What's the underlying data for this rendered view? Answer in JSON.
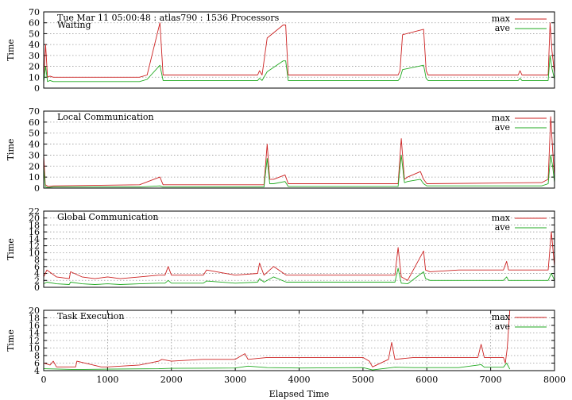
{
  "chart_data": [
    {
      "type": "line",
      "title": "Tue Mar 11 05:00:48 : atlas790 : 1536 Processors",
      "subtitle": "Waiting",
      "xlabel": "",
      "ylabel": "Time",
      "xlim": [
        0,
        8000
      ],
      "ylim": [
        0,
        70
      ],
      "yticks": [
        0,
        10,
        20,
        30,
        40,
        50,
        60,
        70
      ],
      "grid": "on",
      "legend_position": "top-right",
      "series": [
        {
          "name": "max",
          "color": "#cc2222",
          "x": [
            0,
            30,
            60,
            100,
            150,
            1500,
            1620,
            1820,
            1870,
            3350,
            3380,
            3420,
            3500,
            3750,
            3790,
            3830,
            5550,
            5580,
            5620,
            5950,
            5990,
            6020,
            7430,
            7460,
            7490,
            7900,
            7930,
            7960,
            8000
          ],
          "y": [
            9,
            40,
            10,
            11,
            10,
            10,
            12,
            60,
            12,
            12,
            16,
            12,
            46,
            58,
            58,
            12,
            12,
            16,
            49,
            54,
            16,
            12,
            12,
            16,
            12,
            12,
            60,
            34,
            14
          ]
        },
        {
          "name": "ave",
          "color": "#22aa22",
          "x": [
            0,
            30,
            60,
            100,
            150,
            1500,
            1620,
            1820,
            1870,
            3350,
            3380,
            3420,
            3500,
            3750,
            3790,
            3830,
            5550,
            5580,
            5620,
            5950,
            5990,
            6020,
            7430,
            7460,
            7490,
            7900,
            7930,
            7960,
            8000
          ],
          "y": [
            5,
            20,
            6,
            7,
            6,
            6,
            8,
            21,
            7,
            7,
            9,
            7,
            15,
            25,
            25,
            7,
            7,
            9,
            17,
            21,
            9,
            7,
            7,
            9,
            7,
            7,
            30,
            18,
            8
          ]
        }
      ]
    },
    {
      "type": "line",
      "title": "Local Communication",
      "xlabel": "",
      "ylabel": "Time",
      "xlim": [
        0,
        8000
      ],
      "ylim": [
        0,
        70
      ],
      "yticks": [
        0,
        10,
        20,
        30,
        40,
        50,
        60,
        70
      ],
      "grid": "on",
      "legend_position": "top-right",
      "series": [
        {
          "name": "max",
          "color": "#cc2222",
          "x": [
            0,
            25,
            70,
            150,
            1500,
            1820,
            1870,
            3450,
            3500,
            3540,
            3600,
            3780,
            3830,
            5550,
            5600,
            5650,
            5700,
            5900,
            5950,
            6000,
            7800,
            7900,
            7940,
            7970,
            8000
          ],
          "y": [
            30,
            3,
            1.5,
            2,
            3,
            10,
            3,
            3,
            40,
            8,
            8,
            12,
            4,
            4,
            45,
            8,
            10,
            15,
            8,
            4,
            5,
            8,
            65,
            35,
            10
          ]
        },
        {
          "name": "ave",
          "color": "#22aa22",
          "x": [
            0,
            25,
            70,
            150,
            1500,
            1820,
            1870,
            3450,
            3500,
            3540,
            3600,
            3780,
            3830,
            5550,
            5600,
            5650,
            5700,
            5900,
            5950,
            6000,
            7800,
            7900,
            7940,
            7970,
            8000
          ],
          "y": [
            20,
            1,
            0.5,
            1,
            1,
            2,
            1,
            1,
            27,
            4,
            4,
            6,
            1.5,
            1.5,
            30,
            5,
            6,
            8,
            4,
            2,
            2,
            4,
            30,
            20,
            5
          ]
        }
      ]
    },
    {
      "type": "line",
      "title": "Global Communication",
      "xlabel": "",
      "ylabel": "Time",
      "xlim": [
        0,
        8000
      ],
      "ylim": [
        0,
        22
      ],
      "yticks": [
        0,
        2,
        4,
        6,
        8,
        10,
        12,
        14,
        16,
        18,
        20,
        22
      ],
      "grid": "on",
      "legend_position": "top-right",
      "series": [
        {
          "name": "max",
          "color": "#cc2222",
          "x": [
            0,
            50,
            200,
            400,
            420,
            600,
            800,
            1000,
            1200,
            1500,
            1800,
            1900,
            1950,
            2000,
            2500,
            2550,
            3000,
            3350,
            3380,
            3450,
            3600,
            3800,
            5500,
            5550,
            5600,
            5700,
            5950,
            5980,
            6050,
            6500,
            7200,
            7250,
            7280,
            7320,
            7900,
            7950,
            8000
          ],
          "y": [
            3,
            5,
            3,
            2.5,
            4.5,
            3,
            2.5,
            3,
            2.5,
            3,
            3.5,
            3.5,
            6,
            3.5,
            3.5,
            5,
            3.5,
            4,
            7,
            3.5,
            6,
            3.5,
            3.5,
            11.5,
            3,
            2,
            10.5,
            5,
            4.5,
            5,
            5,
            7.5,
            5,
            5,
            5,
            16,
            6
          ]
        },
        {
          "name": "ave",
          "color": "#22aa22",
          "x": [
            0,
            50,
            200,
            400,
            420,
            600,
            800,
            1000,
            1200,
            1500,
            1800,
            1900,
            1950,
            2000,
            2500,
            2550,
            3000,
            3350,
            3380,
            3450,
            3600,
            3800,
            5500,
            5550,
            5600,
            5700,
            5950,
            5980,
            6050,
            6500,
            7200,
            7250,
            7280,
            7320,
            7900,
            7950,
            8000
          ],
          "y": [
            1,
            1.5,
            1,
            0.8,
            1.5,
            1,
            0.8,
            1,
            0.8,
            1,
            1.2,
            1.2,
            2,
            1.2,
            1.2,
            1.8,
            1.2,
            1.5,
            2.5,
            1.5,
            3,
            1.5,
            1.5,
            5.5,
            1.2,
            1,
            4.5,
            2.5,
            2,
            2,
            2,
            3,
            2,
            2,
            2,
            4,
            2
          ]
        }
      ]
    },
    {
      "type": "line",
      "title": "Task Execution",
      "xlabel": "Elapsed Time",
      "ylabel": "Time",
      "xlim": [
        0,
        8000
      ],
      "ylim": [
        4,
        20
      ],
      "yticks": [
        4,
        6,
        8,
        10,
        12,
        14,
        16,
        18,
        20
      ],
      "xticks": [
        0,
        1000,
        2000,
        3000,
        4000,
        5000,
        6000,
        7000,
        8000
      ],
      "grid": "on",
      "legend_position": "top-right",
      "series": [
        {
          "name": "max",
          "color": "#cc2222",
          "x": [
            0,
            100,
            150,
            200,
            500,
            520,
            900,
            1000,
            1500,
            1800,
            1850,
            2000,
            2500,
            3000,
            3150,
            3200,
            3500,
            4000,
            4500,
            5000,
            5100,
            5150,
            5400,
            5450,
            5500,
            5800,
            6000,
            6500,
            6800,
            6850,
            6900,
            7200,
            7230,
            7260,
            7300
          ],
          "y": [
            6,
            5.5,
            6.5,
            5,
            5,
            6.5,
            5,
            5,
            5.5,
            6.5,
            7,
            6.5,
            7,
            7,
            8.5,
            7,
            7.5,
            7.5,
            7.5,
            7.5,
            6.5,
            5,
            7,
            11.5,
            7,
            7.5,
            7.5,
            7.5,
            7.5,
            11,
            7.5,
            7.5,
            6,
            10,
            20
          ]
        },
        {
          "name": "ave",
          "color": "#22aa22",
          "x": [
            0,
            500,
            1000,
            1800,
            2000,
            3000,
            3200,
            3500,
            4000,
            5000,
            5150,
            5400,
            5500,
            5800,
            6500,
            6850,
            6900,
            7200,
            7250,
            7300
          ],
          "y": [
            4.5,
            4.3,
            4.4,
            4.5,
            4.6,
            4.7,
            5.2,
            4.8,
            4.7,
            4.8,
            4.2,
            4.7,
            4.9,
            4.8,
            4.8,
            5.6,
            4.9,
            4.9,
            6,
            4.4
          ]
        }
      ]
    }
  ]
}
